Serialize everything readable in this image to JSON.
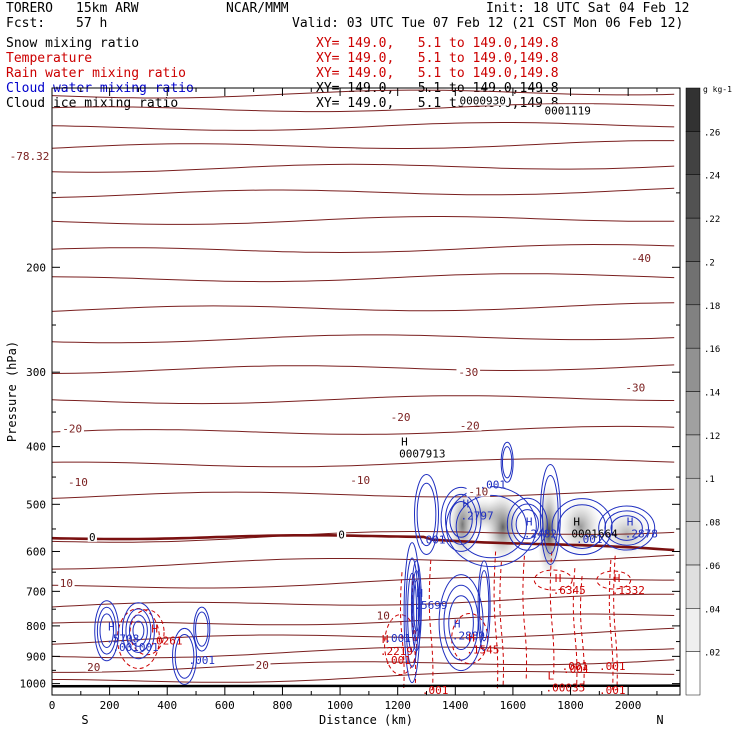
{
  "header": {
    "model": "TORERO",
    "resolution": "15km ARW",
    "center": "NCAR/MMM",
    "init": "Init: 18 UTC Sat 04 Feb 12",
    "fcst_label": "Fcst:",
    "fcst_value": "57 h",
    "valid": "Valid: 03 UTC Tue 07 Feb 12 (21 CST Mon 06 Feb 12)"
  },
  "fields": [
    {
      "name": "Snow mixing ratio",
      "xsec": "XY= 149.0,   5.1 to 149.0,149.8",
      "color": "#000000",
      "xsec_color": "#cc0000"
    },
    {
      "name": "Temperature",
      "xsec": "XY= 149.0,   5.1 to 149.0,149.8",
      "color": "#cc0000",
      "xsec_color": "#cc0000"
    },
    {
      "name": "Rain water mixing ratio",
      "xsec": "XY= 149.0,   5.1 to 149.0,149.8",
      "color": "#cc0000",
      "xsec_color": "#cc0000"
    },
    {
      "name": "Cloud water mixing ratio",
      "xsec": "XY= 149.0,   5.1 to 149.0,149.8",
      "color": "#0000cc",
      "xsec_color": "#000000"
    },
    {
      "name": "Cloud ice mixing ratio",
      "xsec": "XY= 149.0,   5.1 to 149.0,149.8",
      "color": "#000000",
      "xsec_color": "#000000"
    }
  ],
  "colors": {
    "temperature": "#7a1f1f",
    "rain": "#cc0000",
    "cloud_water": "#1f2fc0",
    "ground": "#000000",
    "freezing": "#7a1010"
  },
  "chart_data": {
    "type": "contour",
    "xlabel": "Distance (km)",
    "ylabel": "Pressure (hPa)",
    "x_ticks": [
      0,
      200,
      400,
      600,
      800,
      1000,
      1200,
      1400,
      1600,
      1800,
      2000
    ],
    "y_ticks": [
      200,
      300,
      400,
      500,
      600,
      700,
      800,
      900,
      1000
    ],
    "xlim": [
      0,
      2180
    ],
    "ylim": [
      1045,
      100
    ],
    "y_scale": "log",
    "x_end_labels": {
      "left": "S",
      "right": "N"
    },
    "colorbar": {
      "unit": "g kg-1",
      "ticks": [
        ".02",
        ".04",
        ".06",
        ".08",
        ".1",
        ".12",
        ".14",
        ".16",
        ".18",
        ".2",
        ".22",
        ".24",
        ".26"
      ],
      "range": [
        0,
        0.28
      ]
    },
    "temperature_labels": [
      {
        "x": -78,
        "p": 130,
        "text": "-78.32"
      },
      {
        "x": 1495,
        "p": 105,
        "text": "0000930"
      },
      {
        "x": 1790,
        "p": 109,
        "text": "0001119"
      },
      {
        "x": 2045,
        "p": 193,
        "text": "-40"
      },
      {
        "x": 1445,
        "p": 300,
        "text": "-30"
      },
      {
        "x": 2025,
        "p": 318,
        "text": "-30"
      },
      {
        "x": 70,
        "p": 373,
        "text": "-20"
      },
      {
        "x": 1210,
        "p": 357,
        "text": "-20"
      },
      {
        "x": 1450,
        "p": 369,
        "text": "-20"
      },
      {
        "x": 90,
        "p": 459,
        "text": "-10"
      },
      {
        "x": 1070,
        "p": 455,
        "text": "-10"
      },
      {
        "x": 1480,
        "p": 476,
        "text": "-10"
      },
      {
        "x": 140,
        "p": 567,
        "text": "0"
      },
      {
        "x": 1005,
        "p": 562,
        "text": "0"
      },
      {
        "x": 50,
        "p": 678,
        "text": "10"
      },
      {
        "x": 1150,
        "p": 768,
        "text": "10"
      },
      {
        "x": 145,
        "p": 937,
        "text": "20"
      },
      {
        "x": 730,
        "p": 931,
        "text": "20"
      }
    ],
    "extrema_labels": [
      {
        "x": 1212,
        "p": 398,
        "letter": "H",
        "value": "0007913",
        "color": "#000000"
      },
      {
        "x": 1425,
        "p": 506,
        "letter": "H",
        "value": ".2797",
        "color": "#1f2fc0"
      },
      {
        "x": 1645,
        "p": 543,
        "letter": "H",
        "value": ".2482",
        "color": "#1f2fc0"
      },
      {
        "x": 1810,
        "p": 543,
        "letter": "H",
        "value": "0001664",
        "color": "#000000"
      },
      {
        "x": 1995,
        "p": 543,
        "letter": "H",
        "value": ".2878",
        "color": "#1f2fc0"
      },
      {
        "x": 1265,
        "p": 716,
        "letter": "H",
        "value": ".5699",
        "color": "#1f2fc0"
      },
      {
        "x": 1745,
        "p": 675,
        "letter": "H",
        "value": ".6345",
        "color": "#cc0000"
      },
      {
        "x": 1950,
        "p": 675,
        "letter": "H",
        "value": ".1332",
        "color": "#cc0000"
      },
      {
        "x": 1395,
        "p": 805,
        "letter": "H",
        "value": ".2889",
        "color": "#1f2fc0"
      },
      {
        "x": 195,
        "p": 815,
        "letter": "H",
        "value": ".5708",
        "color": "#1f2fc0"
      },
      {
        "x": 345,
        "p": 820,
        "letter": "H",
        "value": ".0261",
        "color": "#cc0000"
      },
      {
        "x": 1145,
        "p": 855,
        "letter": "H",
        "value": ".2219",
        "color": "#cc0000"
      },
      {
        "x": 1445,
        "p": 850,
        "letter": "H",
        "value": ".1545",
        "color": "#cc0000"
      },
      {
        "x": 1720,
        "p": 985,
        "letter": "L",
        "value": ".00035",
        "color": "#cc0000"
      }
    ],
    "small_labels": [
      {
        "x": 1530,
        "p": 463,
        "text": ".001",
        "color": "#1f2fc0"
      },
      {
        "x": 1320,
        "p": 573,
        "text": ".001",
        "color": "#1f2fc0"
      },
      {
        "x": 1865,
        "p": 572,
        "text": ".001",
        "color": "#1f2fc0"
      },
      {
        "x": 1200,
        "p": 838,
        "text": ".001",
        "color": "#1f2fc0"
      },
      {
        "x": 290,
        "p": 868,
        "text": ".001001",
        "color": "#1f2fc0"
      },
      {
        "x": 520,
        "p": 913,
        "text": ".001",
        "color": "#1f2fc0"
      },
      {
        "x": 1200,
        "p": 913,
        "text": ".001",
        "color": "#cc0000"
      },
      {
        "x": 1815,
        "p": 935,
        "text": ".001",
        "color": "#cc0000"
      },
      {
        "x": 1820,
        "p": 945,
        "text": ".001",
        "color": "#cc0000"
      },
      {
        "x": 1945,
        "p": 935,
        "text": ".001",
        "color": "#cc0000"
      },
      {
        "x": 1330,
        "p": 1025,
        "text": ".001",
        "color": "#cc0000"
      },
      {
        "x": 1945,
        "p": 1025,
        "text": ".001",
        "color": "#cc0000"
      }
    ]
  }
}
